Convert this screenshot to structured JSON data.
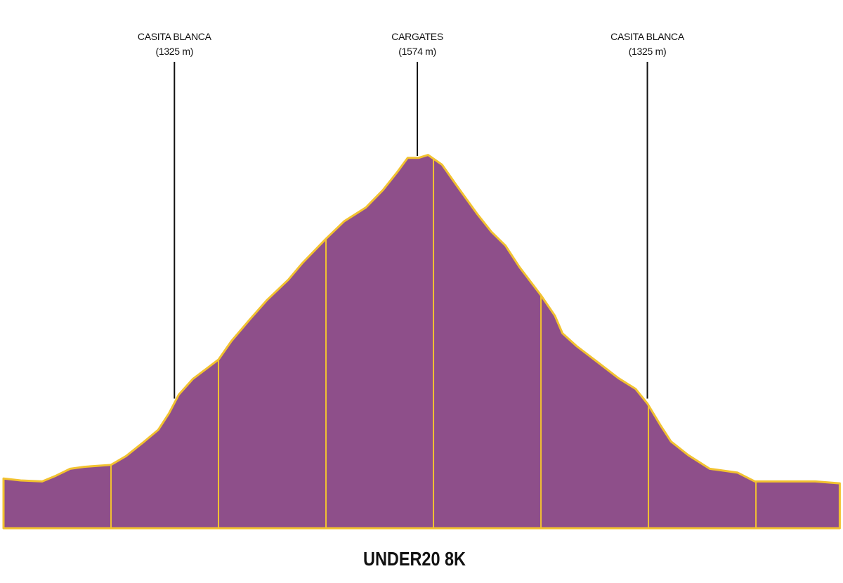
{
  "chart_data": {
    "type": "area",
    "title": "UNDER20 8K",
    "x": [
      0.0,
      0.16,
      0.36,
      0.49,
      0.62,
      0.75,
      1.0,
      1.14,
      1.31,
      1.44,
      1.54,
      1.63,
      1.76,
      2.0,
      2.12,
      2.29,
      2.45,
      2.65,
      2.78,
      3.0,
      3.17,
      3.37,
      3.53,
      3.66,
      3.76,
      3.86,
      3.95,
      4.08,
      4.22,
      4.41,
      4.54,
      4.67,
      4.8,
      5.0,
      5.13,
      5.2,
      5.33,
      5.52,
      5.72,
      5.88,
      5.99,
      6.11,
      6.21,
      6.37,
      6.57,
      6.83,
      6.99,
      7.29,
      7.55,
      7.78
    ],
    "values": [
      1243,
      1241,
      1240,
      1246,
      1253,
      1255,
      1257,
      1266,
      1281,
      1293,
      1310,
      1329,
      1345,
      1365,
      1384,
      1406,
      1426,
      1447,
      1464,
      1489,
      1507,
      1521,
      1539,
      1557,
      1572,
      1572,
      1575,
      1565,
      1543,
      1514,
      1496,
      1482,
      1460,
      1431,
      1410,
      1392,
      1379,
      1363,
      1346,
      1335,
      1320,
      1298,
      1281,
      1267,
      1253,
      1249,
      1240,
      1240,
      1240,
      1238
    ],
    "color": "#8e4f8a",
    "line_color": "#f2c230",
    "xlim": [
      0,
      7.81
    ],
    "ylim": [
      1192,
      1734
    ],
    "xticks": [
      1,
      2,
      3,
      4,
      5,
      6,
      7
    ],
    "annotations": [
      {
        "label": "CASITA BLANCA",
        "elevation_label": "(1325 m)",
        "x": 1.59,
        "y": 1325
      },
      {
        "label": "CARGATES",
        "elevation_label": "(1574 m)",
        "x": 3.85,
        "y": 1574
      },
      {
        "label": "CASITA BLANCA",
        "elevation_label": "(1325 m)",
        "x": 5.99,
        "y": 1325
      }
    ]
  }
}
